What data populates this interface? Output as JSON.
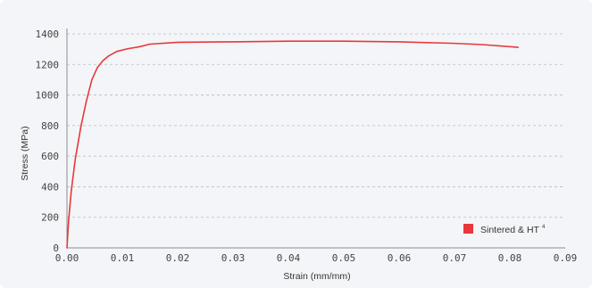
{
  "chart_data": {
    "type": "line",
    "title": "",
    "xlabel": "Strain (mm/mm)",
    "ylabel": "Stress (MPa)",
    "xlim": [
      0,
      0.09
    ],
    "ylim": [
      0,
      1400
    ],
    "x_ticks": [
      "0.00",
      "0.01",
      "0.02",
      "0.03",
      "0.04",
      "0.05",
      "0.06",
      "0.07",
      "0.08",
      "0.09"
    ],
    "y_ticks": [
      "0",
      "200",
      "400",
      "600",
      "800",
      "1000",
      "1200",
      "1400"
    ],
    "grid": true,
    "legend_position": "bottom-right",
    "series": [
      {
        "name": "Sintered & HT",
        "name_superscript": "4",
        "color": "#e8383b",
        "x": [
          0,
          0.0003,
          0.0008,
          0.0015,
          0.0025,
          0.0035,
          0.0045,
          0.0055,
          0.0065,
          0.0075,
          0.009,
          0.011,
          0.013,
          0.015,
          0.02,
          0.03,
          0.04,
          0.05,
          0.06,
          0.07,
          0.075,
          0.0815
        ],
        "y": [
          0,
          180,
          380,
          580,
          790,
          960,
          1100,
          1180,
          1225,
          1255,
          1285,
          1303,
          1315,
          1333,
          1345,
          1348,
          1352,
          1352,
          1348,
          1338,
          1330,
          1312
        ]
      }
    ]
  }
}
